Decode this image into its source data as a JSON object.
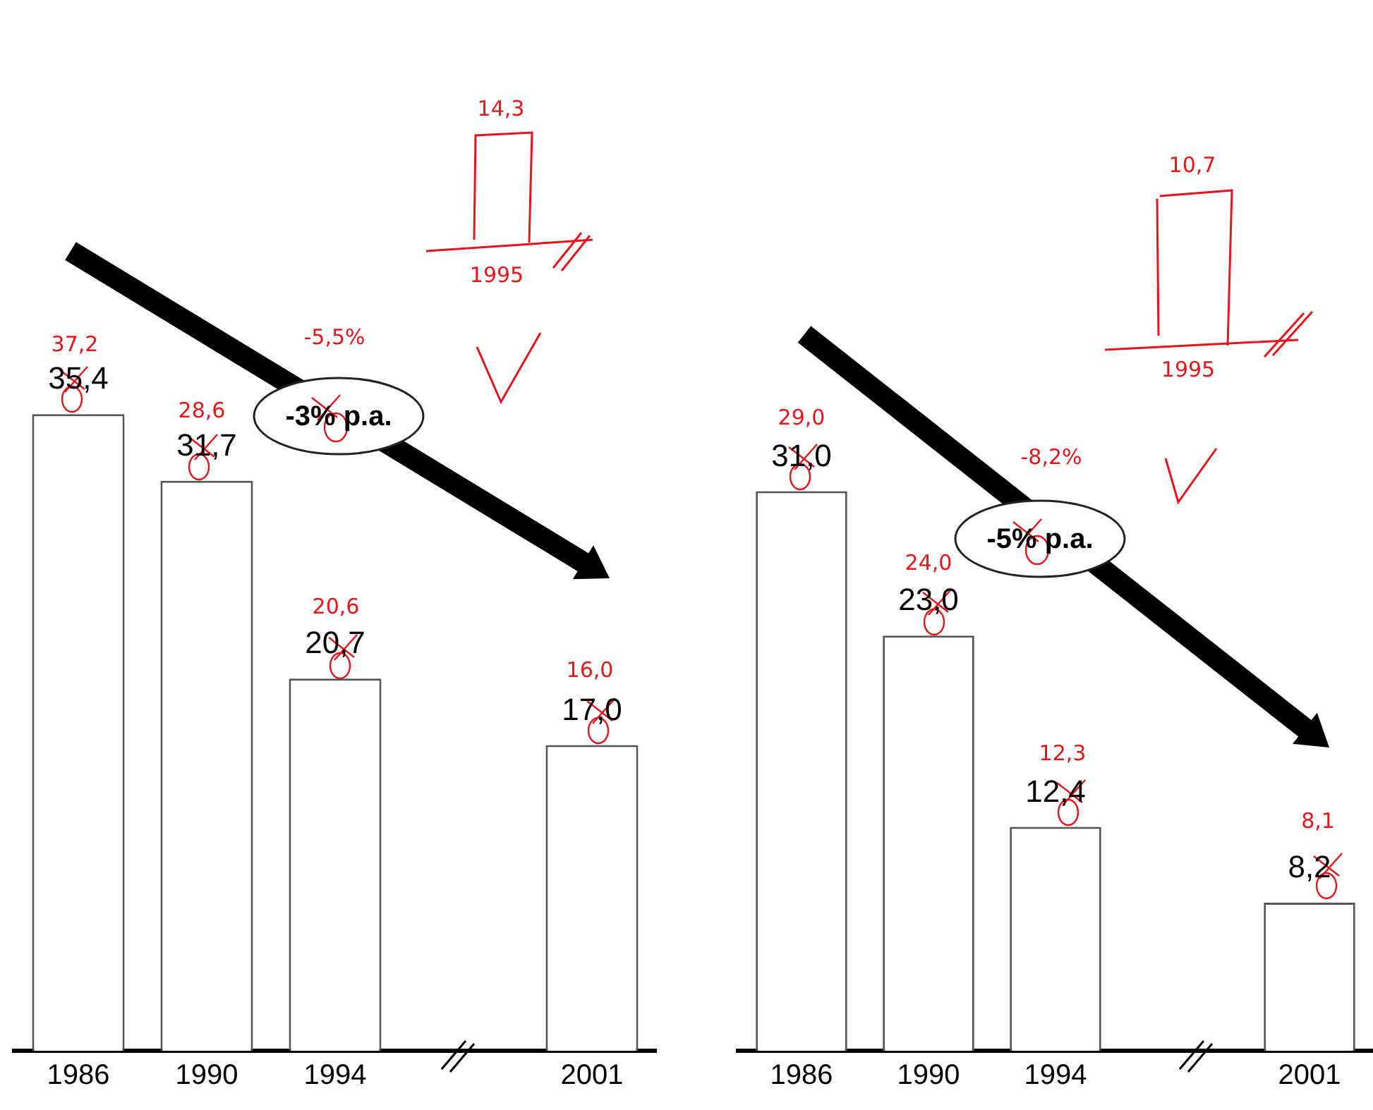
{
  "chart_data": [
    {
      "type": "bar",
      "categories": [
        "1986",
        "1990",
        "1994",
        null,
        "2001"
      ],
      "values": [
        35.4,
        31.7,
        20.7,
        null,
        17.0
      ],
      "value_labels": [
        "35,4",
        "31,7",
        "20,7",
        null,
        "17,0"
      ],
      "color": "#ffffff",
      "annotations": [
        "37,2",
        "28,6",
        "20,6",
        "16,0",
        "-3% p.a.",
        "-5,5%",
        "14,3",
        "1995"
      ]
    },
    {
      "type": "bar",
      "categories": [
        "1986",
        "1990",
        "1994",
        null,
        "2001"
      ],
      "values": [
        31.0,
        23.0,
        12.4,
        null,
        8.2
      ],
      "value_labels": [
        "31,0",
        "23,0",
        "12,4",
        null,
        "8,2"
      ],
      "color": "#ffffff",
      "annotations": [
        "29,0",
        "24,0",
        "12,3",
        "8,1",
        "-5% p.a.",
        "-8,2%",
        "10,7",
        "1995"
      ]
    }
  ]
}
